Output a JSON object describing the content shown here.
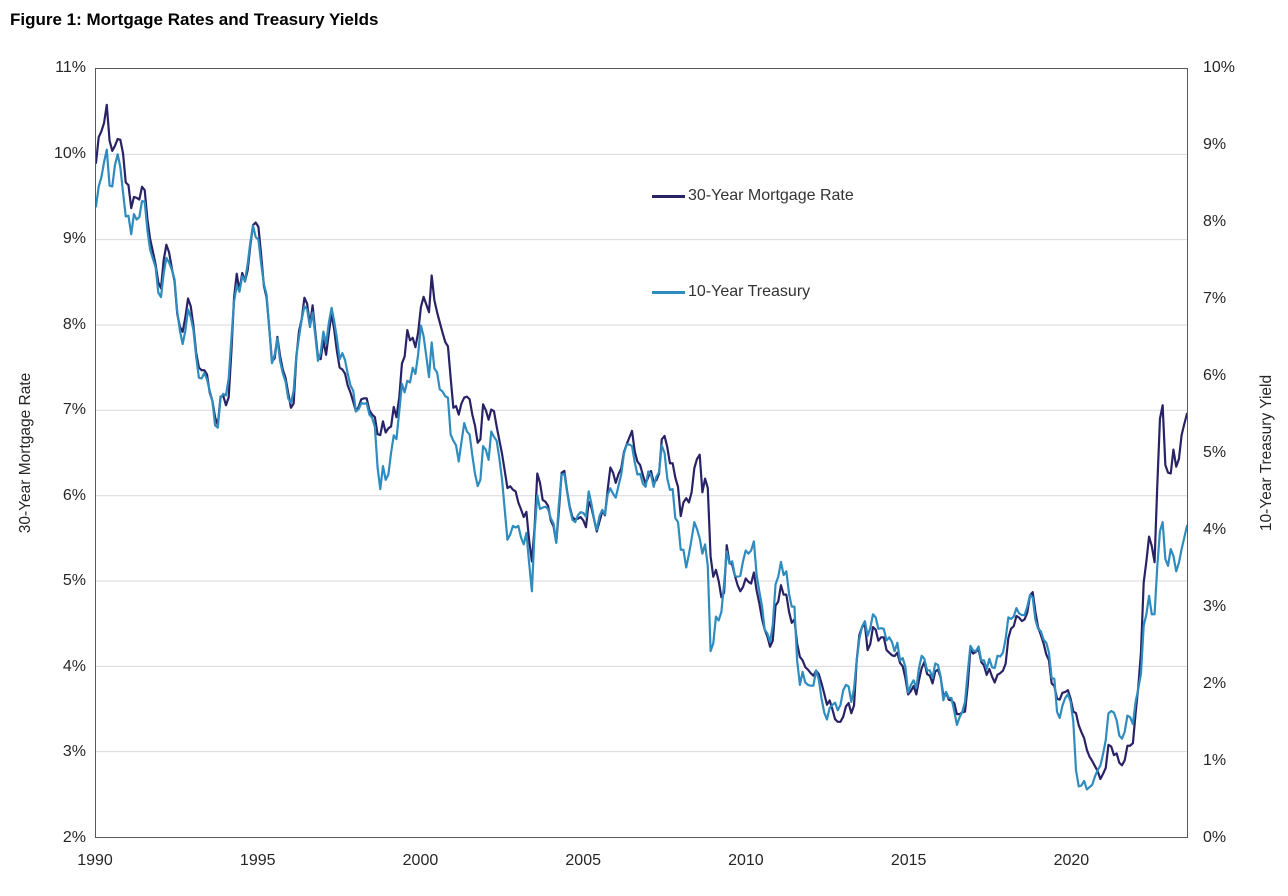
{
  "figure": {
    "title": "Figure 1: Mortgage Rates and Treasury Yields"
  },
  "style": {
    "grid_color": "#d9d9d9",
    "border_color": "#595959",
    "tick_text_color": "#262626",
    "mortgage_color": "#282267",
    "treasury_color": "#2e8cbe"
  },
  "chart_data": {
    "type": "line",
    "title": "Figure 1: Mortgage Rates and Treasury Yields",
    "grid": "horizontal",
    "legend_position": "inside-top-center",
    "x_axis": {
      "min": 1990,
      "max": 2023.583,
      "tick_values": [
        1990,
        1995,
        2000,
        2005,
        2010,
        2015,
        2020
      ],
      "ticks": [
        "1990",
        "1995",
        "2000",
        "2005",
        "2010",
        "2015",
        "2020"
      ],
      "unit": "year",
      "points_start": "1990-01",
      "points_step": "monthly"
    },
    "left_axis": {
      "label": "30-Year Mortgage Rate",
      "min": 2,
      "max": 11,
      "tick_values": [
        11,
        10,
        9,
        8,
        7,
        6,
        5,
        4,
        3,
        2
      ],
      "ticks": [
        "11%",
        "10%",
        "9%",
        "8%",
        "7%",
        "6%",
        "5%",
        "4%",
        "3%",
        "2%"
      ],
      "grid_values": [
        10,
        9,
        8,
        7,
        6,
        5,
        4,
        3
      ]
    },
    "right_axis": {
      "label": "10-Year Treasury Yield",
      "min": 0,
      "max": 10,
      "tick_values": [
        10,
        9,
        8,
        7,
        6,
        5,
        4,
        3,
        2,
        1,
        0
      ],
      "ticks": [
        "10%",
        "9%",
        "8%",
        "7%",
        "6%",
        "5%",
        "4%",
        "3%",
        "2%",
        "1%",
        "0%"
      ]
    },
    "series": [
      {
        "name": "30-Year Mortgage Rate",
        "axis": "left",
        "color": "#282267",
        "values": [
          9.9,
          10.2,
          10.27,
          10.37,
          10.58,
          10.16,
          10.04,
          10.1,
          10.18,
          10.17,
          10.01,
          9.67,
          9.64,
          9.37,
          9.5,
          9.49,
          9.47,
          9.62,
          9.58,
          9.24,
          9.01,
          8.86,
          8.71,
          8.5,
          8.43,
          8.76,
          8.94,
          8.85,
          8.67,
          8.51,
          8.13,
          7.98,
          7.92,
          8.09,
          8.31,
          8.22,
          7.99,
          7.68,
          7.5,
          7.47,
          7.47,
          7.42,
          7.21,
          7.11,
          6.92,
          6.83,
          7.16,
          7.17,
          7.06,
          7.15,
          7.68,
          8.32,
          8.6,
          8.4,
          8.61,
          8.51,
          8.64,
          8.93,
          9.17,
          9.2,
          9.15,
          8.83,
          8.46,
          8.32,
          7.96,
          7.57,
          7.61,
          7.86,
          7.64,
          7.48,
          7.38,
          7.2,
          7.03,
          7.08,
          7.62,
          7.93,
          8.07,
          8.32,
          8.25,
          8.0,
          8.23,
          7.92,
          7.62,
          7.6,
          7.82,
          7.65,
          7.9,
          8.14,
          7.94,
          7.69,
          7.5,
          7.48,
          7.43,
          7.29,
          7.21,
          7.1,
          6.99,
          7.04,
          7.13,
          7.14,
          7.14,
          7.0,
          6.95,
          6.92,
          6.72,
          6.71,
          6.87,
          6.74,
          6.79,
          6.81,
          7.04,
          6.92,
          7.15,
          7.55,
          7.63,
          7.94,
          7.82,
          7.85,
          7.74,
          7.91,
          8.21,
          8.33,
          8.24,
          8.15,
          8.58,
          8.29,
          8.15,
          8.03,
          7.91,
          7.8,
          7.75,
          7.38,
          7.03,
          7.05,
          6.95,
          7.08,
          7.15,
          7.16,
          7.13,
          6.95,
          6.82,
          6.62,
          6.66,
          7.07,
          7.0,
          6.89,
          7.01,
          6.99,
          6.81,
          6.65,
          6.49,
          6.29,
          6.09,
          6.11,
          6.07,
          6.05,
          5.92,
          5.84,
          5.75,
          5.81,
          5.48,
          5.23,
          5.63,
          6.26,
          6.15,
          5.95,
          5.93,
          5.88,
          5.71,
          5.64,
          5.45,
          5.83,
          6.27,
          6.29,
          6.06,
          5.87,
          5.75,
          5.72,
          5.73,
          5.75,
          5.71,
          5.63,
          5.93,
          5.86,
          5.72,
          5.58,
          5.7,
          5.82,
          5.77,
          6.07,
          6.33,
          6.27,
          6.15,
          6.25,
          6.32,
          6.51,
          6.6,
          6.68,
          6.76,
          6.52,
          6.4,
          6.36,
          6.24,
          6.14,
          6.22,
          6.29,
          6.16,
          6.18,
          6.26,
          6.66,
          6.7,
          6.57,
          6.38,
          6.38,
          6.21,
          6.1,
          5.76,
          5.92,
          5.97,
          5.92,
          6.04,
          6.32,
          6.43,
          6.48,
          6.04,
          6.2,
          6.09,
          5.29,
          5.05,
          5.13,
          5.0,
          4.81,
          4.86,
          5.42,
          5.22,
          5.19,
          5.06,
          4.95,
          4.88,
          4.93,
          5.03,
          4.99,
          4.97,
          5.1,
          4.89,
          4.74,
          4.56,
          4.43,
          4.35,
          4.23,
          4.3,
          4.71,
          4.76,
          4.95,
          4.84,
          4.84,
          4.64,
          4.51,
          4.55,
          4.27,
          4.11,
          4.07,
          3.99,
          3.96,
          3.92,
          3.89,
          3.95,
          3.91,
          3.8,
          3.68,
          3.55,
          3.6,
          3.5,
          3.38,
          3.35,
          3.35,
          3.41,
          3.53,
          3.57,
          3.45,
          3.54,
          4.07,
          4.37,
          4.46,
          4.49,
          4.19,
          4.26,
          4.46,
          4.43,
          4.3,
          4.34,
          4.34,
          4.19,
          4.16,
          4.13,
          4.12,
          4.16,
          4.04,
          4.0,
          3.86,
          3.67,
          3.71,
          3.77,
          3.67,
          3.84,
          3.98,
          4.05,
          3.91,
          3.89,
          3.8,
          3.94,
          3.96,
          3.87,
          3.66,
          3.69,
          3.61,
          3.6,
          3.57,
          3.44,
          3.44,
          3.46,
          3.47,
          3.77,
          4.2,
          4.15,
          4.17,
          4.2,
          4.05,
          4.01,
          3.9,
          3.97,
          3.88,
          3.81,
          3.9,
          3.92,
          3.95,
          4.03,
          4.33,
          4.44,
          4.47,
          4.59,
          4.57,
          4.53,
          4.55,
          4.63,
          4.83,
          4.87,
          4.64,
          4.46,
          4.37,
          4.27,
          4.14,
          4.07,
          3.8,
          3.77,
          3.62,
          3.61,
          3.69,
          3.7,
          3.72,
          3.62,
          3.47,
          3.45,
          3.31,
          3.23,
          3.16,
          3.02,
          2.94,
          2.89,
          2.83,
          2.77,
          2.68,
          2.74,
          2.81,
          3.08,
          3.06,
          2.96,
          2.98,
          2.87,
          2.84,
          2.9,
          3.07,
          3.07,
          3.1,
          3.45,
          3.76,
          4.17,
          4.98,
          5.23,
          5.52,
          5.41,
          5.22,
          6.11,
          6.9,
          7.06,
          6.36,
          6.27,
          6.26,
          6.54,
          6.34,
          6.43,
          6.71,
          6.84,
          6.96
        ]
      },
      {
        "name": "10-Year Treasury",
        "axis": "right",
        "color": "#2e8cbe",
        "values": [
          8.21,
          8.47,
          8.59,
          8.79,
          8.95,
          8.48,
          8.47,
          8.75,
          8.89,
          8.72,
          8.39,
          8.08,
          8.09,
          7.85,
          8.11,
          8.04,
          8.07,
          8.28,
          8.27,
          7.9,
          7.65,
          7.53,
          7.42,
          7.09,
          7.03,
          7.34,
          7.54,
          7.48,
          7.39,
          7.26,
          6.84,
          6.59,
          6.42,
          6.59,
          6.87,
          6.77,
          6.6,
          6.26,
          5.98,
          5.97,
          6.04,
          5.96,
          5.81,
          5.68,
          5.36,
          5.33,
          5.72,
          5.77,
          5.75,
          5.97,
          6.48,
          6.97,
          7.18,
          7.1,
          7.3,
          7.24,
          7.46,
          7.74,
          7.96,
          7.81,
          7.78,
          7.47,
          7.2,
          7.06,
          6.63,
          6.17,
          6.28,
          6.49,
          6.2,
          6.04,
          5.93,
          5.71,
          5.65,
          5.81,
          6.27,
          6.51,
          6.74,
          6.91,
          6.87,
          6.64,
          6.83,
          6.53,
          6.2,
          6.3,
          6.58,
          6.42,
          6.69,
          6.89,
          6.71,
          6.49,
          6.22,
          6.3,
          6.21,
          6.03,
          5.88,
          5.81,
          5.54,
          5.57,
          5.65,
          5.64,
          5.65,
          5.5,
          5.46,
          5.34,
          4.81,
          4.53,
          4.83,
          4.65,
          4.72,
          5.0,
          5.23,
          5.18,
          5.54,
          5.9,
          5.79,
          5.94,
          5.92,
          6.11,
          6.03,
          6.28,
          6.66,
          6.52,
          6.26,
          5.99,
          6.44,
          6.1,
          6.05,
          5.83,
          5.8,
          5.74,
          5.72,
          5.24,
          5.16,
          5.1,
          4.89,
          5.14,
          5.39,
          5.28,
          5.24,
          4.97,
          4.73,
          4.57,
          4.65,
          5.09,
          5.04,
          4.91,
          5.28,
          5.21,
          5.16,
          4.93,
          4.65,
          4.26,
          3.87,
          3.94,
          4.05,
          4.03,
          4.05,
          3.9,
          3.81,
          3.96,
          3.57,
          3.2,
          3.98,
          4.45,
          4.27,
          4.29,
          4.3,
          4.27,
          4.15,
          4.08,
          3.83,
          4.35,
          4.72,
          4.73,
          4.5,
          4.28,
          4.13,
          4.1,
          4.19,
          4.23,
          4.22,
          4.17,
          4.5,
          4.34,
          4.14,
          4.0,
          4.18,
          4.26,
          4.2,
          4.46,
          4.54,
          4.47,
          4.42,
          4.57,
          4.72,
          4.99,
          5.11,
          5.11,
          5.09,
          4.88,
          4.72,
          4.73,
          4.6,
          4.56,
          4.76,
          4.72,
          4.56,
          4.69,
          4.75,
          5.1,
          5.0,
          4.67,
          4.52,
          4.53,
          4.15,
          4.1,
          3.74,
          3.74,
          3.51,
          3.68,
          3.88,
          4.1,
          4.01,
          3.89,
          3.69,
          3.81,
          3.53,
          2.42,
          2.52,
          2.87,
          2.82,
          2.93,
          3.29,
          3.72,
          3.56,
          3.59,
          3.4,
          3.39,
          3.4,
          3.59,
          3.73,
          3.69,
          3.73,
          3.85,
          3.42,
          3.2,
          3.01,
          2.7,
          2.65,
          2.54,
          2.76,
          3.29,
          3.39,
          3.58,
          3.41,
          3.46,
          3.17,
          3.0,
          3.0,
          2.3,
          1.98,
          2.15,
          2.01,
          1.98,
          1.97,
          1.97,
          2.17,
          2.05,
          1.8,
          1.62,
          1.53,
          1.68,
          1.72,
          1.75,
          1.65,
          1.72,
          1.91,
          1.98,
          1.96,
          1.76,
          1.93,
          2.3,
          2.58,
          2.74,
          2.81,
          2.62,
          2.72,
          2.9,
          2.86,
          2.71,
          2.72,
          2.71,
          2.56,
          2.6,
          2.54,
          2.42,
          2.53,
          2.3,
          2.33,
          2.21,
          1.88,
          1.98,
          2.04,
          1.94,
          2.2,
          2.36,
          2.32,
          2.17,
          2.17,
          2.07,
          2.26,
          2.24,
          2.09,
          1.78,
          1.89,
          1.81,
          1.81,
          1.64,
          1.46,
          1.56,
          1.63,
          1.76,
          2.14,
          2.49,
          2.43,
          2.42,
          2.48,
          2.3,
          2.3,
          2.19,
          2.32,
          2.21,
          2.2,
          2.36,
          2.35,
          2.4,
          2.58,
          2.86,
          2.84,
          2.87,
          2.98,
          2.91,
          2.89,
          2.89,
          3.0,
          3.15,
          3.12,
          2.83,
          2.71,
          2.68,
          2.57,
          2.53,
          2.4,
          2.07,
          2.06,
          1.63,
          1.55,
          1.71,
          1.81,
          1.86,
          1.76,
          1.5,
          0.87,
          0.66,
          0.67,
          0.73,
          0.62,
          0.65,
          0.68,
          0.79,
          0.87,
          0.93,
          1.08,
          1.26,
          1.61,
          1.64,
          1.62,
          1.52,
          1.32,
          1.28,
          1.37,
          1.58,
          1.56,
          1.47,
          1.76,
          1.93,
          2.13,
          2.75,
          2.9,
          3.14,
          2.9,
          2.9,
          3.52,
          3.98,
          4.1,
          3.62,
          3.53,
          3.75,
          3.66,
          3.46,
          3.57,
          3.75,
          3.9,
          4.05
        ]
      }
    ]
  }
}
